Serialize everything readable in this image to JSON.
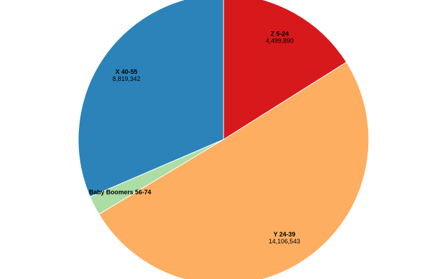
{
  "chart_data": {
    "type": "pie",
    "categories": [
      "Z 5-24",
      "Y 24-39",
      "Baby Boomers 56-74",
      "X 40-55"
    ],
    "values": [
      4499890,
      14106543,
      600000,
      8819342
    ],
    "value_labels": [
      "4,499,890",
      "14,106,543",
      null,
      "8,819,342"
    ],
    "colors": [
      "#d7191c",
      "#fdae61",
      "#abdda4",
      "#2b83ba"
    ]
  }
}
